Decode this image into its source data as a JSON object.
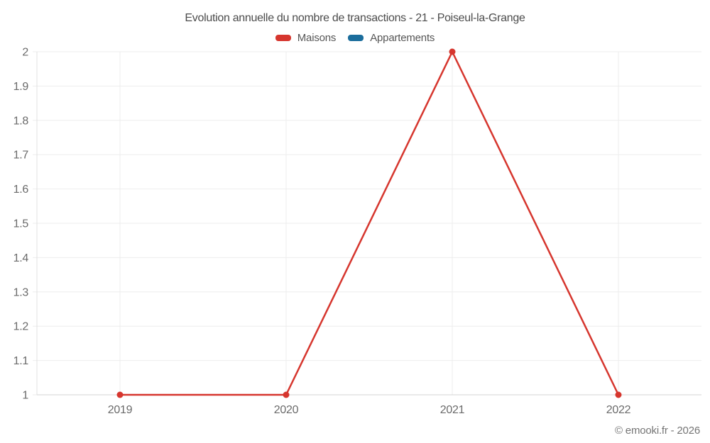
{
  "header": {
    "title": "Evolution annuelle du nombre de transactions - 21 - Poiseul-la-Grange"
  },
  "legend": {
    "items": [
      {
        "label": "Maisons",
        "color": "#d6362e"
      },
      {
        "label": "Appartements",
        "color": "#1b6d9c"
      }
    ]
  },
  "footer": {
    "watermark": "© emooki.fr - 2026"
  },
  "colors": {
    "grid": "#ededed",
    "axis_line": "#e0e0e0",
    "baseline": "#d6d6d6",
    "tick_text": "#6a6a6a",
    "title_text": "#4c4c4c",
    "watermark_text": "#757575",
    "background": "#ffffff"
  },
  "chart_data": {
    "type": "line",
    "title": "Evolution annuelle du nombre de transactions - 21 - Poiseul-la-Grange",
    "x": [
      "2019",
      "2020",
      "2021",
      "2022"
    ],
    "series": [
      {
        "name": "Maisons",
        "color": "#d6362e",
        "values": [
          1,
          1,
          2,
          1
        ]
      },
      {
        "name": "Appartements",
        "color": "#1b6d9c",
        "values": []
      }
    ],
    "xlabel": "",
    "ylabel": "",
    "ylim": [
      1,
      2
    ],
    "y_ticks": [
      1,
      1.1,
      1.2,
      1.3,
      1.4,
      1.5,
      1.6,
      1.7,
      1.8,
      1.9,
      2
    ],
    "grid": true,
    "legend_position": "top"
  }
}
